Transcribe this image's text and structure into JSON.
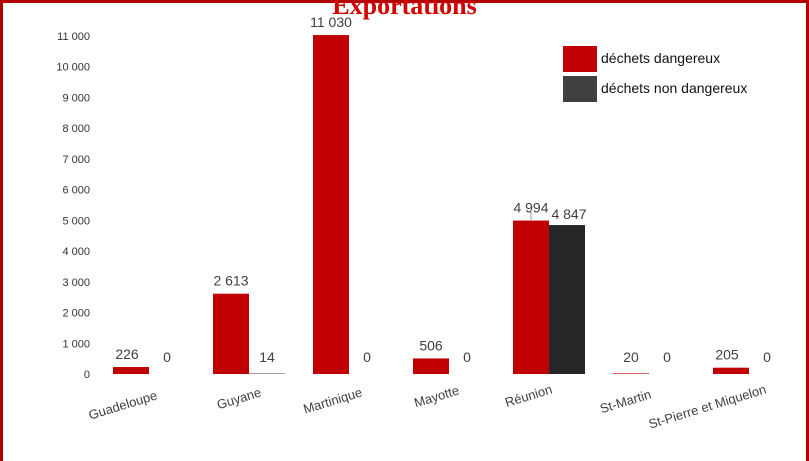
{
  "chart_data": {
    "type": "bar",
    "title": "Exportations",
    "categories": [
      "Guadeloupe",
      "Guyane",
      "Martinique",
      "Mayotte",
      "Réunion",
      "St-Martin",
      "St-Pierre et Miquelon"
    ],
    "series": [
      {
        "name": "déchets dangereux",
        "color": "#c00000",
        "values": [
          226,
          2613,
          11030,
          506,
          4994,
          20,
          205
        ],
        "labels": [
          "226",
          "2 613",
          "11 030",
          "506",
          "4 994",
          "20",
          "205"
        ]
      },
      {
        "name": "déchets non dangereux",
        "color": "#262626",
        "values": [
          0,
          14,
          0,
          0,
          4847,
          0,
          0
        ],
        "labels": [
          "0",
          "14",
          "0",
          "0",
          "4 847",
          "0",
          "0"
        ]
      }
    ],
    "ylim": [
      0,
      11000
    ],
    "yticks": [
      0,
      1000,
      2000,
      3000,
      4000,
      5000,
      6000,
      7000,
      8000,
      9000,
      10000,
      11000
    ],
    "ytick_labels": [
      "0",
      "1 000",
      "2 000",
      "3 000",
      "4 000",
      "5 000",
      "6 000",
      "7 000",
      "8 000",
      "9 000",
      "10 000",
      "11 000"
    ],
    "grid": false,
    "legend": "top-right",
    "legend_swatch_colors": [
      "#c00000",
      "#404040"
    ]
  }
}
